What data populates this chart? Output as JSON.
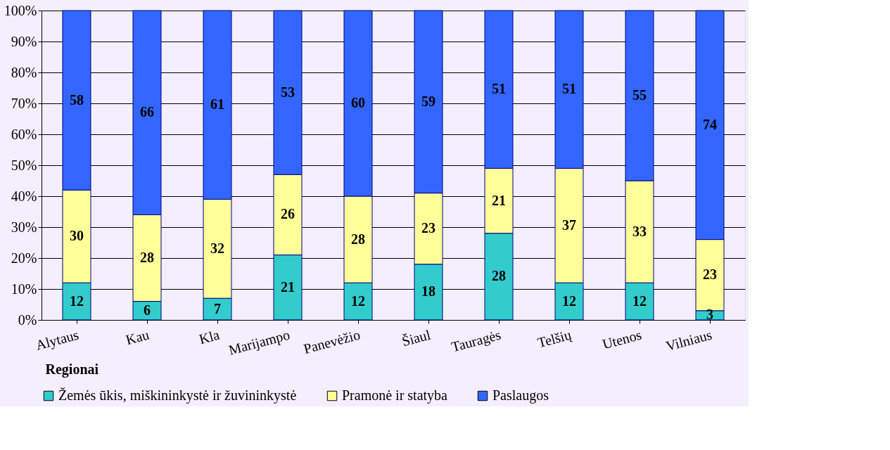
{
  "chart_data": {
    "type": "bar",
    "stacked": true,
    "xlabel": "Regionai",
    "categories": [
      "Alytaus",
      "Kau",
      "Kla",
      "Marijampo",
      "Panevėžio",
      "Šiaul",
      "Tauragės",
      "Telšių",
      "Utenos",
      "Vilniaus"
    ],
    "series": [
      {
        "name": "Žemės ūkis, miškininkystė ir žuvininkystė",
        "color": "#33cccc",
        "values": [
          12,
          6,
          7,
          21,
          12,
          18,
          28,
          12,
          12,
          3
        ]
      },
      {
        "name": "Pramonė ir statyba",
        "color": "#ffff99",
        "values": [
          30,
          28,
          32,
          26,
          28,
          23,
          21,
          37,
          33,
          23
        ]
      },
      {
        "name": "Paslaugos",
        "color": "#3366ff",
        "values": [
          58,
          66,
          61,
          53,
          60,
          59,
          51,
          51,
          55,
          74
        ]
      }
    ],
    "ylim": [
      0,
      100
    ],
    "yticks": [
      {
        "value": 0,
        "label": "0%"
      },
      {
        "value": 10,
        "label": "10%"
      },
      {
        "value": 20,
        "label": "20%"
      },
      {
        "value": 30,
        "label": "30%"
      },
      {
        "value": 40,
        "label": "40%"
      },
      {
        "value": 50,
        "label": "50%"
      },
      {
        "value": 60,
        "label": "60%"
      },
      {
        "value": 70,
        "label": "70%"
      },
      {
        "value": 80,
        "label": "80%"
      },
      {
        "value": 90,
        "label": "90%"
      },
      {
        "value": 100,
        "label": "100%"
      }
    ],
    "grid": "y",
    "legend": "bottom",
    "data_labels": true
  }
}
